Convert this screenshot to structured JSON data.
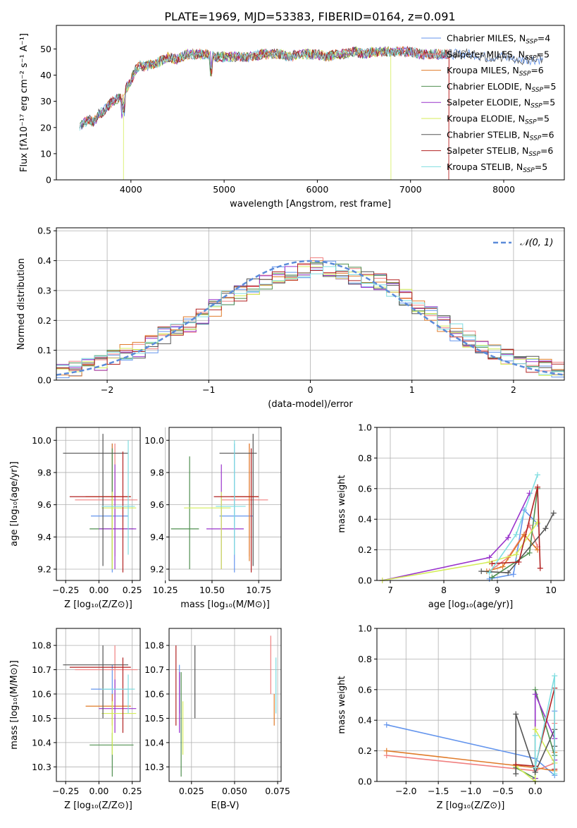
{
  "figure_title": "PLATE=1969, MJD=53383, FIBERID=0164, z=0.091",
  "models": [
    {
      "name": "Chabrier MILES",
      "nssp": "4",
      "color": "#6495ed"
    },
    {
      "name": "Salpeter MILES",
      "nssp": "5",
      "color": "#f08080"
    },
    {
      "name": "Kroupa MILES",
      "nssp": "6",
      "color": "#e07b2a"
    },
    {
      "name": "Chabrier ELODIE",
      "nssp": "5",
      "color": "#4f8f4f"
    },
    {
      "name": "Salpeter ELODIE",
      "nssp": "5",
      "color": "#9933cc"
    },
    {
      "name": "Kroupa ELODIE",
      "nssp": "5",
      "color": "#d4ed5a"
    },
    {
      "name": "Chabrier STELIB",
      "nssp": "6",
      "color": "#555555"
    },
    {
      "name": "Salpeter STELIB",
      "nssp": "6",
      "color": "#b22222"
    },
    {
      "name": "Kroupa STELIB",
      "nssp": "5",
      "color": "#7fdde0"
    }
  ],
  "chart_data": [
    {
      "id": "spectrum",
      "type": "line",
      "xlabel": "wavelength [Angstrom, rest frame]",
      "ylabel": "Flux [fλ10⁻¹⁷ erg cm⁻² s⁻¹ A⁻¹]",
      "xlim": [
        3200,
        8650
      ],
      "ylim": [
        0,
        59
      ],
      "xticks": [
        4000,
        5000,
        6000,
        7000,
        8000
      ],
      "yticks": [
        0,
        10,
        20,
        30,
        40,
        50
      ],
      "grid": false,
      "legend": "top-right",
      "observed": {
        "x": [
          3450,
          3500,
          3550,
          3600,
          3650,
          3700,
          3750,
          3800,
          3850,
          3900,
          3950,
          4000,
          4050,
          4100,
          4150,
          4200,
          4300,
          4400,
          4500,
          4600,
          4700,
          4800,
          4900,
          5000,
          5100,
          5200,
          5300,
          5400,
          5500,
          5600,
          5700,
          5800,
          5900,
          6000,
          6100,
          6200,
          6300,
          6400,
          6500,
          6600,
          6700,
          6800,
          6900,
          7000,
          7100,
          7200,
          7300,
          7400,
          7500,
          7600,
          7700,
          7800,
          7900,
          8000,
          8100,
          8200,
          8300,
          8400
        ],
        "y": [
          20,
          22,
          23,
          22,
          25,
          26,
          28,
          30,
          31,
          31,
          35,
          38,
          42,
          44,
          43,
          44,
          45,
          47,
          46,
          48,
          48,
          48,
          47,
          47,
          47,
          47,
          47,
          48,
          48,
          48,
          47,
          48,
          48,
          48,
          47,
          48,
          48,
          49,
          48,
          49,
          49,
          49,
          49,
          49,
          48,
          48,
          48,
          48,
          48,
          48,
          48,
          47,
          47,
          47,
          46,
          46,
          46,
          46
        ]
      }
    },
    {
      "id": "residuals",
      "type": "area",
      "xlabel": "(data-model)/error",
      "ylabel": "Normed distribution",
      "xlim": [
        -2.5,
        2.5
      ],
      "ylim": [
        0,
        0.51
      ],
      "xticks": [
        -2,
        -1,
        0,
        1,
        2
      ],
      "yticks": [
        0.0,
        0.1,
        0.2,
        0.3,
        0.4,
        0.5
      ],
      "grid": true,
      "legend": "top-right",
      "legend_label": "𝒩(0, 1)",
      "bins": 40,
      "hist": [
        0.025,
        0.035,
        0.045,
        0.06,
        0.075,
        0.09,
        0.1,
        0.12,
        0.15,
        0.17,
        0.19,
        0.21,
        0.24,
        0.27,
        0.29,
        0.31,
        0.33,
        0.35,
        0.36,
        0.37,
        0.38,
        0.37,
        0.36,
        0.35,
        0.34,
        0.33,
        0.31,
        0.28,
        0.25,
        0.22,
        0.19,
        0.16,
        0.14,
        0.12,
        0.1,
        0.08,
        0.065,
        0.05,
        0.04,
        0.035
      ]
    },
    {
      "id": "age_vs_Z",
      "type": "scatter",
      "xlabel": "Z [log₁₀(Z/Z⊙)]",
      "ylabel": "age  [log₁₀(age/yr)]",
      "xlim": [
        -0.32,
        0.31
      ],
      "ylim": [
        9.13,
        10.08
      ],
      "xticks": [
        -0.25,
        0.0,
        0.25
      ],
      "yticks": [
        9.2,
        9.4,
        9.6,
        9.8,
        10.0
      ],
      "grid": true,
      "points": [
        {
          "x": 0.1,
          "y": 9.53,
          "xerr": [
            0.16,
            0.12
          ],
          "yerr": [
            0.35,
            0.45
          ]
        },
        {
          "x": 0.12,
          "y": 9.63,
          "xerr": [
            0.3,
            0.17
          ],
          "yerr": [
            0.35,
            0.35
          ]
        },
        {
          "x": 0.1,
          "y": 9.65,
          "xerr": [
            0.2,
            0.14
          ],
          "yerr": [
            0.4,
            0.33
          ]
        },
        {
          "x": 0.1,
          "y": 9.45,
          "xerr": [
            0.17,
            0.16
          ],
          "yerr": [
            0.25,
            0.5
          ]
        },
        {
          "x": 0.12,
          "y": 9.45,
          "xerr": [
            0.12,
            0.16
          ],
          "yerr": [
            0.25,
            0.4
          ]
        },
        {
          "x": 0.1,
          "y": 9.58,
          "xerr": [
            0.08,
            0.18
          ],
          "yerr": [
            0.38,
            0.1
          ]
        },
        {
          "x": 0.03,
          "y": 9.92,
          "xerr": [
            0.3,
            0.19
          ],
          "yerr": [
            0.7,
            0.12
          ]
        },
        {
          "x": 0.18,
          "y": 9.65,
          "xerr": [
            0.4,
            0.06
          ],
          "yerr": [
            0.47,
            0.28
          ]
        },
        {
          "x": 0.22,
          "y": 9.59,
          "xerr": [
            0.2,
            0.05
          ],
          "yerr": [
            0.3,
            0.41
          ]
        }
      ]
    },
    {
      "id": "age_vs_mass",
      "type": "scatter",
      "xlabel": "mass [log₁₀(M/M⊙)]",
      "ylabel": "",
      "xlim": [
        10.27,
        10.87
      ],
      "ylim": [
        9.13,
        10.08
      ],
      "xticks": [
        10.25,
        10.5,
        10.75
      ],
      "yticks": [
        9.2,
        9.4,
        9.6,
        9.8,
        10.0
      ],
      "grid": true,
      "points": [
        {
          "x": 10.62,
          "y": 9.53,
          "xerr": [
            0.08,
            0.1
          ],
          "yerr": [
            0.35,
            0.45
          ]
        },
        {
          "x": 10.7,
          "y": 9.63,
          "xerr": [
            0.15,
            0.1
          ],
          "yerr": [
            0.35,
            0.35
          ]
        },
        {
          "x": 10.7,
          "y": 9.65,
          "xerr": [
            0.1,
            0.05
          ],
          "yerr": [
            0.4,
            0.33
          ]
        },
        {
          "x": 10.38,
          "y": 9.45,
          "xerr": [
            0.1,
            0.05
          ],
          "yerr": [
            0.25,
            0.45
          ]
        },
        {
          "x": 10.55,
          "y": 9.45,
          "xerr": [
            0.08,
            0.12
          ],
          "yerr": [
            0.25,
            0.4
          ]
        },
        {
          "x": 10.55,
          "y": 9.58,
          "xerr": [
            0.2,
            0.05
          ],
          "yerr": [
            0.38,
            0.1
          ]
        },
        {
          "x": 10.72,
          "y": 9.92,
          "xerr": [
            0.18,
            0.02
          ],
          "yerr": [
            0.7,
            0.12
          ]
        },
        {
          "x": 10.71,
          "y": 9.65,
          "xerr": [
            0.2,
            0.04
          ],
          "yerr": [
            0.47,
            0.3
          ]
        },
        {
          "x": 10.62,
          "y": 9.59,
          "xerr": [
            0.1,
            0.06
          ],
          "yerr": [
            0.3,
            0.41
          ]
        }
      ]
    },
    {
      "id": "weight_vs_age",
      "type": "line",
      "xlabel": "age  [log₁₀(age/yr)]",
      "ylabel": "mass weight",
      "xlim": [
        6.75,
        10.25
      ],
      "ylim": [
        0,
        1.0
      ],
      "xticks": [
        7,
        8,
        9,
        10
      ],
      "yticks": [
        0.0,
        0.2,
        0.4,
        0.6,
        0.8,
        1.0
      ],
      "grid": true,
      "series": [
        {
          "x": [
            8.85,
            9.3,
            9.5,
            9.75
          ],
          "y": [
            0.01,
            0.04,
            0.46,
            0.37
          ]
        },
        {
          "x": [
            8.85,
            9.2,
            9.6,
            9.75
          ],
          "y": [
            0.06,
            0.15,
            0.36,
            0.22
          ]
        },
        {
          "x": [
            8.8,
            9.1,
            9.5,
            9.75
          ],
          "y": [
            0.06,
            0.09,
            0.3,
            0.2
          ]
        },
        {
          "x": [
            8.9,
            9.6,
            9.75
          ],
          "y": [
            0.02,
            0.18,
            0.6
          ]
        },
        {
          "x": [
            6.85,
            8.85,
            9.2,
            9.6
          ],
          "y": [
            0.0,
            0.15,
            0.28,
            0.57
          ]
        },
        {
          "x": [
            6.85,
            8.85,
            9.35,
            9.75
          ],
          "y": [
            0.0,
            0.12,
            0.17,
            0.38
          ]
        },
        {
          "x": [
            8.7,
            9.2,
            9.9,
            10.05
          ],
          "y": [
            0.06,
            0.05,
            0.34,
            0.44
          ]
        },
        {
          "x": [
            8.9,
            9.4,
            9.75,
            9.8
          ],
          "y": [
            0.11,
            0.12,
            0.61,
            0.08
          ]
        },
        {
          "x": [
            8.85,
            9.35,
            9.75
          ],
          "y": [
            0.05,
            0.3,
            0.69
          ]
        }
      ]
    },
    {
      "id": "mass_vs_Z",
      "type": "scatter",
      "xlabel": "Z [log₁₀(Z/Z⊙)]",
      "ylabel": "mass [log₁₀(M/M⊙)]",
      "xlim": [
        -0.32,
        0.31
      ],
      "ylim": [
        10.24,
        10.87
      ],
      "xticks": [
        -0.25,
        0.0,
        0.25
      ],
      "yticks": [
        10.3,
        10.4,
        10.5,
        10.6,
        10.7,
        10.8
      ],
      "grid": true,
      "points": [
        {
          "x": 0.1,
          "y": 10.62,
          "xerr": [
            0.16,
            0.12
          ],
          "yerr": [
            0.1,
            0.1
          ]
        },
        {
          "x": 0.12,
          "y": 10.7,
          "xerr": [
            0.3,
            0.17
          ],
          "yerr": [
            0.15,
            0.1
          ]
        },
        {
          "x": 0.1,
          "y": 10.55,
          "xerr": [
            0.2,
            0.14
          ],
          "yerr": [
            0.08,
            0.05
          ]
        },
        {
          "x": 0.1,
          "y": 10.39,
          "xerr": [
            0.17,
            0.16
          ],
          "yerr": [
            0.13,
            0.05
          ]
        },
        {
          "x": 0.12,
          "y": 10.54,
          "xerr": [
            0.12,
            0.16
          ],
          "yerr": [
            0.1,
            0.12
          ]
        },
        {
          "x": 0.1,
          "y": 10.52,
          "xerr": [
            0.08,
            0.18
          ],
          "yerr": [
            0.17,
            0.05
          ]
        },
        {
          "x": 0.03,
          "y": 10.72,
          "xerr": [
            0.3,
            0.19
          ],
          "yerr": [
            0.22,
            0.08
          ]
        },
        {
          "x": 0.18,
          "y": 10.71,
          "xerr": [
            0.4,
            0.06
          ],
          "yerr": [
            0.27,
            0.04
          ]
        },
        {
          "x": 0.22,
          "y": 10.62,
          "xerr": [
            0.2,
            0.05
          ],
          "yerr": [
            0.1,
            0.06
          ]
        }
      ]
    },
    {
      "id": "mass_vs_EBV",
      "type": "scatter",
      "xlabel": "E(B-V)",
      "ylabel": "",
      "xlim": [
        0.012,
        0.077
      ],
      "ylim": [
        10.24,
        10.87
      ],
      "xticks": [
        0.025,
        0.05,
        0.075
      ],
      "yticks": [
        10.3,
        10.4,
        10.5,
        10.6,
        10.7,
        10.8
      ],
      "grid": true,
      "points": [
        {
          "x": 0.018,
          "y": 10.62,
          "xerr": [
            0,
            0
          ],
          "yerr": [
            0.1,
            0.1
          ]
        },
        {
          "x": 0.071,
          "y": 10.7,
          "xerr": [
            0,
            0
          ],
          "yerr": [
            0.1,
            0.14
          ]
        },
        {
          "x": 0.073,
          "y": 10.55,
          "xerr": [
            0,
            0
          ],
          "yerr": [
            0.08,
            0.05
          ]
        },
        {
          "x": 0.019,
          "y": 10.39,
          "xerr": [
            0,
            0
          ],
          "yerr": [
            0.13,
            0.3
          ]
        },
        {
          "x": 0.018,
          "y": 10.54,
          "xerr": [
            0,
            0
          ],
          "yerr": [
            0.1,
            0.15
          ]
        },
        {
          "x": 0.02,
          "y": 10.52,
          "xerr": [
            0,
            0
          ],
          "yerr": [
            0.17,
            0.05
          ]
        },
        {
          "x": 0.027,
          "y": 10.72,
          "xerr": [
            0,
            0
          ],
          "yerr": [
            0.22,
            0.08
          ]
        },
        {
          "x": 0.016,
          "y": 10.71,
          "xerr": [
            0,
            0
          ],
          "yerr": [
            0.24,
            0.09
          ]
        },
        {
          "x": 0.074,
          "y": 10.62,
          "xerr": [
            0,
            0
          ],
          "yerr": [
            0.1,
            0.13
          ]
        }
      ]
    },
    {
      "id": "weight_vs_Z",
      "type": "line",
      "xlabel": "Z [log₁₀(Z/Z⊙)]",
      "ylabel": "mass weight",
      "xlim": [
        -2.45,
        0.45
      ],
      "ylim": [
        0,
        1.0
      ],
      "xticks": [
        -2.0,
        -1.5,
        -1.0,
        -0.5,
        0.0
      ],
      "xtick_labels": [
        "−2.0",
        "−1.5",
        "−1.0",
        "−0.5",
        "0.0"
      ],
      "yticks": [
        0.0,
        0.2,
        0.4,
        0.6,
        0.8,
        1.0
      ],
      "grid": true,
      "series": [
        {
          "x": [
            -2.3,
            0.0,
            0.3,
            0.3
          ],
          "y": [
            0.37,
            0.15,
            0.04,
            0.46
          ]
        },
        {
          "x": [
            -2.3,
            0.0,
            0.3,
            0.3
          ],
          "y": [
            0.17,
            0.07,
            0.12,
            0.38
          ]
        },
        {
          "x": [
            -2.3,
            0.0,
            0.3,
            0.3
          ],
          "y": [
            0.2,
            0.09,
            0.07,
            0.19
          ]
        },
        {
          "x": [
            -0.3,
            0.0,
            0.0,
            0.3
          ],
          "y": [
            0.09,
            0.02,
            0.6,
            0.17
          ]
        },
        {
          "x": [
            0.0,
            0.0,
            0.3,
            0.3
          ],
          "y": [
            0.02,
            0.57,
            0.28,
            0.14
          ]
        },
        {
          "x": [
            -0.3,
            0.0,
            0.0,
            0.3
          ],
          "y": [
            0.1,
            0.0,
            0.34,
            0.12
          ]
        },
        {
          "x": [
            -0.3,
            -0.3,
            0.0,
            0.3,
            0.3
          ],
          "y": [
            0.05,
            0.44,
            0.06,
            0.34,
            0.23
          ]
        },
        {
          "x": [
            -0.3,
            0.0,
            0.3,
            0.3
          ],
          "y": [
            0.11,
            0.1,
            0.61,
            0.08
          ]
        },
        {
          "x": [
            0.0,
            0.0,
            0.3,
            0.3
          ],
          "y": [
            0.3,
            0.09,
            0.69,
            0.05
          ]
        }
      ]
    }
  ]
}
